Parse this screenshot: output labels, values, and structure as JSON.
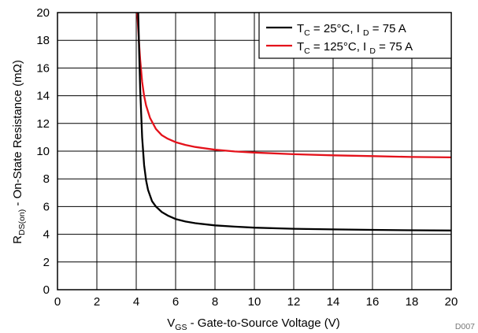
{
  "chart_data": {
    "type": "line",
    "xlabel": {
      "main": "V",
      "sub": "GS",
      "rest": " - Gate-to-Source Voltage (V)"
    },
    "ylabel": {
      "main": "R",
      "sub": "DS(on)",
      "rest": " - On-State Resistance (mΩ)"
    },
    "xlim": [
      0,
      20
    ],
    "ylim": [
      0,
      20
    ],
    "xticks": [
      "0",
      "2",
      "4",
      "6",
      "8",
      "10",
      "12",
      "14",
      "16",
      "18",
      "20"
    ],
    "yticks": [
      "0",
      "2",
      "4",
      "6",
      "8",
      "10",
      "12",
      "14",
      "16",
      "18",
      "20"
    ],
    "grid": true,
    "legend_position": "top-right",
    "series": [
      {
        "name": "TC = 25°C, I D = 75 A",
        "label_parts": {
          "t": "T",
          "tsub": "C",
          "mid": " = 25°C, I ",
          "isub": "D",
          "end": " = 75 A"
        },
        "color": "#000000",
        "x": [
          4.1,
          4.15,
          4.2,
          4.3,
          4.4,
          4.5,
          4.6,
          4.8,
          5.0,
          5.3,
          5.6,
          6.0,
          6.5,
          7.0,
          8.0,
          9.0,
          10.0,
          12.0,
          14.0,
          16.0,
          18.0,
          20.0
        ],
        "y": [
          20.0,
          17.0,
          14.5,
          11.0,
          9.0,
          7.9,
          7.2,
          6.4,
          6.0,
          5.6,
          5.35,
          5.1,
          4.92,
          4.8,
          4.64,
          4.55,
          4.48,
          4.4,
          4.35,
          4.32,
          4.29,
          4.27
        ]
      },
      {
        "name": "TC = 125°C, I D = 75 A",
        "label_parts": {
          "t": "T",
          "tsub": "C",
          "mid": " = 125°C, I ",
          "isub": "D",
          "end": " = 75 A"
        },
        "color": "#e4121b",
        "x": [
          4.05,
          4.1,
          4.15,
          4.2,
          4.3,
          4.4,
          4.5,
          4.7,
          5.0,
          5.3,
          5.6,
          6.0,
          6.5,
          7.0,
          8.0,
          9.0,
          10.0,
          12.0,
          14.0,
          16.0,
          18.0,
          20.0
        ],
        "y": [
          20.0,
          18.8,
          17.6,
          16.6,
          15.0,
          14.0,
          13.3,
          12.4,
          11.6,
          11.15,
          10.9,
          10.65,
          10.45,
          10.3,
          10.1,
          9.98,
          9.9,
          9.78,
          9.7,
          9.64,
          9.58,
          9.55
        ]
      }
    ],
    "figure_tag": "D007"
  }
}
